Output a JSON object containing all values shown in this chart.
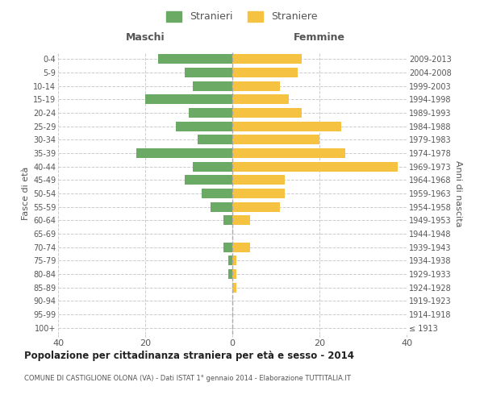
{
  "age_groups": [
    "100+",
    "95-99",
    "90-94",
    "85-89",
    "80-84",
    "75-79",
    "70-74",
    "65-69",
    "60-64",
    "55-59",
    "50-54",
    "45-49",
    "40-44",
    "35-39",
    "30-34",
    "25-29",
    "20-24",
    "15-19",
    "10-14",
    "5-9",
    "0-4"
  ],
  "birth_years": [
    "≤ 1913",
    "1914-1918",
    "1919-1923",
    "1924-1928",
    "1929-1933",
    "1934-1938",
    "1939-1943",
    "1944-1948",
    "1949-1953",
    "1954-1958",
    "1959-1963",
    "1964-1968",
    "1969-1973",
    "1974-1978",
    "1979-1983",
    "1984-1988",
    "1989-1993",
    "1994-1998",
    "1999-2003",
    "2004-2008",
    "2009-2013"
  ],
  "maschi": [
    0,
    0,
    0,
    0,
    1,
    1,
    2,
    0,
    2,
    5,
    7,
    11,
    9,
    22,
    8,
    13,
    10,
    20,
    9,
    11,
    17
  ],
  "femmine": [
    0,
    0,
    0,
    1,
    1,
    1,
    4,
    0,
    4,
    11,
    12,
    12,
    38,
    26,
    20,
    25,
    16,
    13,
    11,
    15,
    16
  ],
  "maschi_color": "#6aaa64",
  "femmine_color": "#f5c242",
  "bar_height": 0.72,
  "xlim": 40,
  "title": "Popolazione per cittadinanza straniera per età e sesso - 2014",
  "subtitle": "COMUNE DI CASTIGLIONE OLONA (VA) - Dati ISTAT 1° gennaio 2014 - Elaborazione TUTTITALIA.IT",
  "ylabel_left": "Fasce di età",
  "ylabel_right": "Anni di nascita",
  "maschi_label": "Stranieri",
  "femmine_label": "Straniere",
  "header_maschi": "Maschi",
  "header_femmine": "Femmine",
  "grid_color": "#cccccc",
  "background_color": "#ffffff",
  "text_color": "#555555"
}
